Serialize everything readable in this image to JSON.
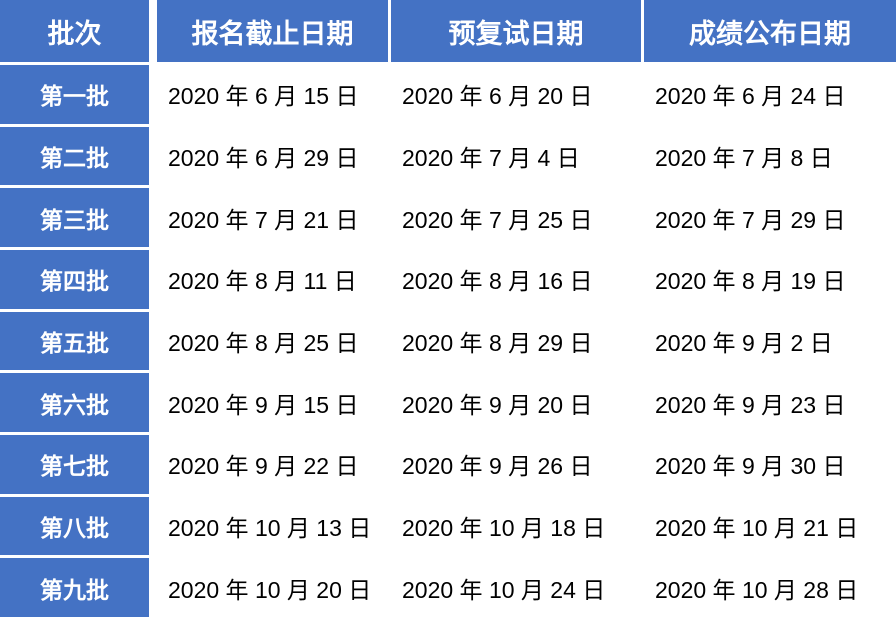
{
  "table": {
    "columns": [
      {
        "key": "batch",
        "label": "批次"
      },
      {
        "key": "deadline",
        "label": "报名截止日期"
      },
      {
        "key": "retest",
        "label": "预复试日期"
      },
      {
        "key": "results",
        "label": "成绩公布日期"
      }
    ],
    "rows": [
      {
        "batch": "第一批",
        "deadline": "2020 年 6 月 15 日",
        "retest": "2020 年 6 月 20 日",
        "results": "2020 年 6 月 24 日"
      },
      {
        "batch": "第二批",
        "deadline": "2020 年 6 月 29 日",
        "retest": "2020 年 7 月 4 日",
        "results": "2020 年 7 月 8 日"
      },
      {
        "batch": "第三批",
        "deadline": "2020 年 7 月 21 日",
        "retest": "2020 年 7 月 25 日",
        "results": "2020 年 7 月 29 日"
      },
      {
        "batch": "第四批",
        "deadline": "2020 年 8 月 11 日",
        "retest": "2020 年 8 月 16 日",
        "results": "2020 年 8 月 19 日"
      },
      {
        "batch": "第五批",
        "deadline": "2020 年 8 月 25 日",
        "retest": "2020 年 8 月 29 日",
        "results": "2020 年 9 月 2 日"
      },
      {
        "batch": "第六批",
        "deadline": "2020 年 9 月 15 日",
        "retest": "2020 年 9 月 20 日",
        "results": "2020 年 9 月 23 日"
      },
      {
        "batch": "第七批",
        "deadline": "2020 年 9 月 22 日",
        "retest": "2020 年 9 月 26 日",
        "results": "2020 年 9 月 30 日"
      },
      {
        "batch": "第八批",
        "deadline": "2020 年 10 月 13 日",
        "retest": "2020 年 10 月 18 日",
        "results": "2020 年 10 月 21 日"
      },
      {
        "batch": "第九批",
        "deadline": "2020 年 10 月 20 日",
        "retest": "2020 年 10 月 24 日",
        "results": "2020 年 10 月 28 日"
      }
    ]
  },
  "colors": {
    "header_bg": "#4472C4",
    "header_text": "#FFFFFF",
    "band_dark": "#A2B5DE",
    "band_light": "#CFD9ED",
    "cell_text": "#000000",
    "divider": "#FFFFFF"
  }
}
